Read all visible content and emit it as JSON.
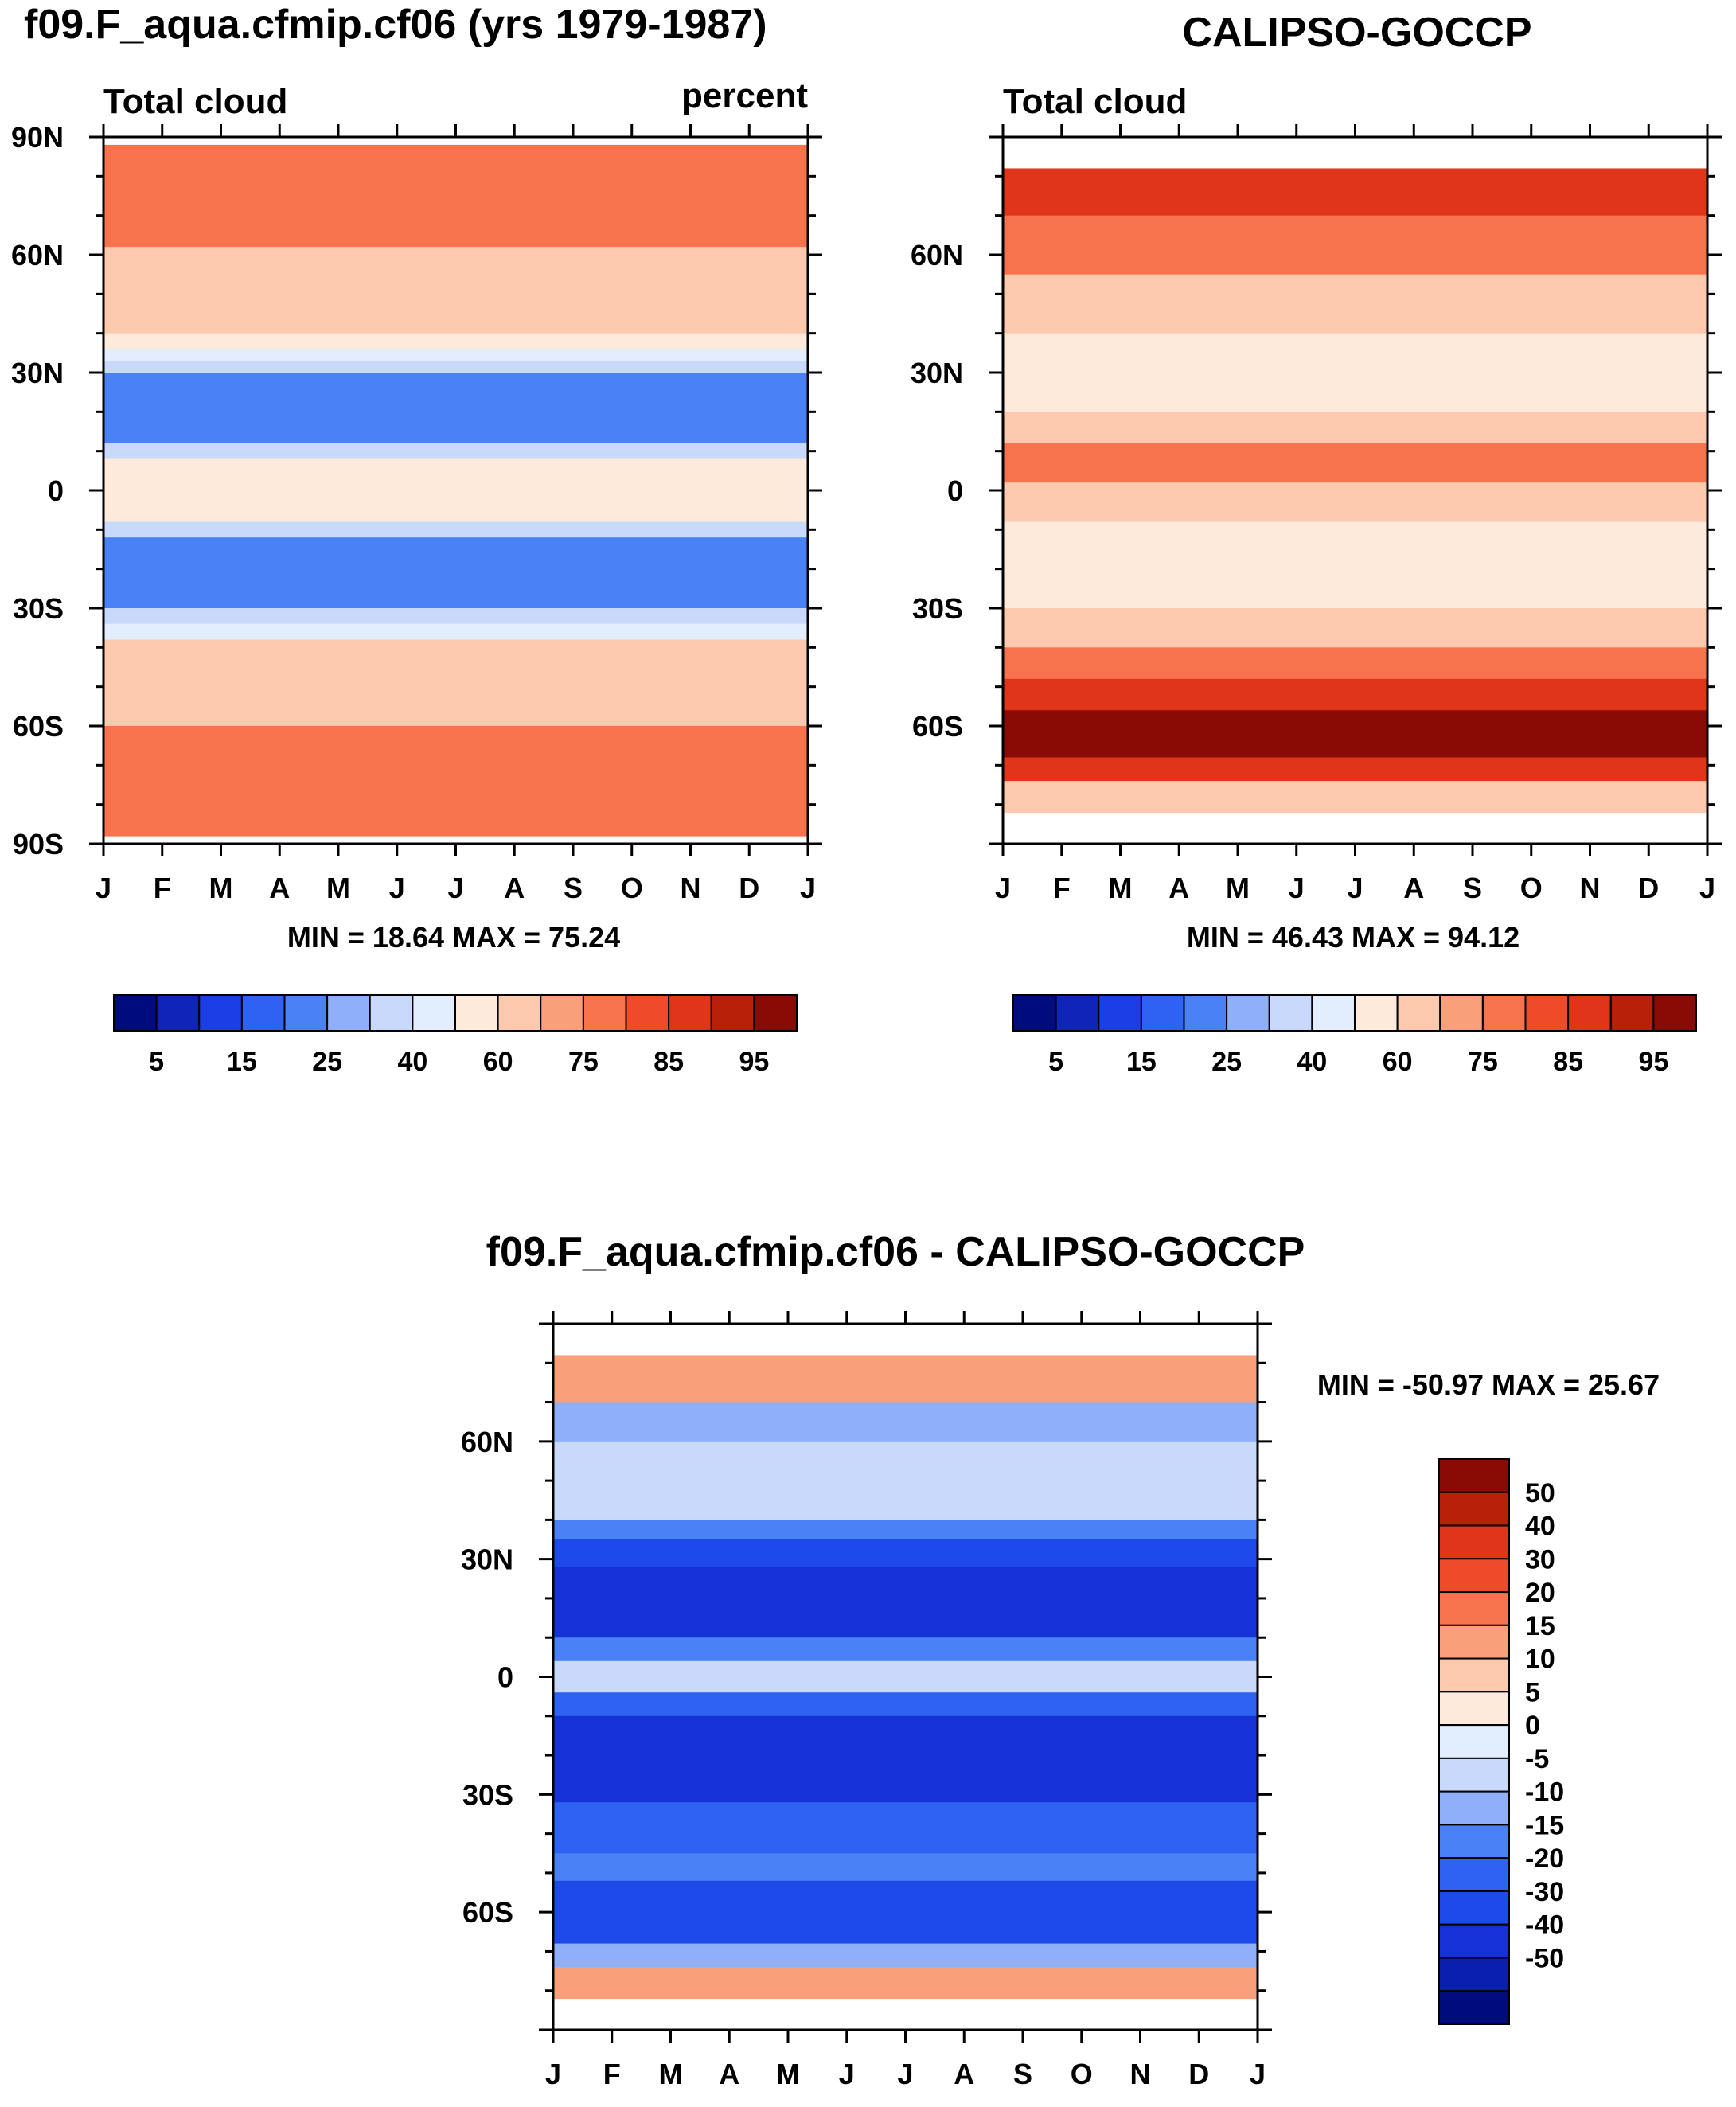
{
  "chart_data": [
    {
      "type": "heatmap",
      "title": "f09.F_aqua.cfmip.cf06 (yrs 1979-1987)",
      "left_label": "Total cloud",
      "right_label": "percent",
      "stats": "MIN =  18.64 MAX =  75.24",
      "x": [
        "J",
        "F",
        "M",
        "A",
        "M",
        "J",
        "J",
        "A",
        "S",
        "O",
        "N",
        "D",
        "J"
      ],
      "y_ticks": [
        "90N",
        "60N",
        "30N",
        "0",
        "30S",
        "60S",
        "90S"
      ],
      "lat_range": [
        -90,
        90
      ],
      "colorbar_labels": [
        "5",
        "15",
        "25",
        "40",
        "60",
        "75",
        "85",
        "95"
      ],
      "bands": [
        {
          "lat": [
            62,
            88
          ],
          "value": 75
        },
        {
          "lat": [
            40,
            62
          ],
          "value": 60
        },
        {
          "lat": [
            36,
            40
          ],
          "value": 50
        },
        {
          "lat": [
            33,
            36
          ],
          "value": 40
        },
        {
          "lat": [
            30,
            33
          ],
          "value": 30
        },
        {
          "lat": [
            12,
            30
          ],
          "value": 20
        },
        {
          "lat": [
            8,
            12
          ],
          "value": 35
        },
        {
          "lat": [
            -8,
            8
          ],
          "value": 50
        },
        {
          "lat": [
            -12,
            -8
          ],
          "value": 35
        },
        {
          "lat": [
            -30,
            -12
          ],
          "value": 20
        },
        {
          "lat": [
            -34,
            -30
          ],
          "value": 30
        },
        {
          "lat": [
            -38,
            -34
          ],
          "value": 45
        },
        {
          "lat": [
            -60,
            -38
          ],
          "value": 60
        },
        {
          "lat": [
            -88,
            -60
          ],
          "value": 75
        }
      ]
    },
    {
      "type": "heatmap",
      "title": "CALIPSO-GOCCP",
      "left_label": "Total cloud",
      "stats": "MIN =  46.43 MAX =  94.12",
      "x": [
        "J",
        "F",
        "M",
        "A",
        "M",
        "J",
        "J",
        "A",
        "S",
        "O",
        "N",
        "D",
        "J"
      ],
      "y_ticks": [
        "60N",
        "30N",
        "0",
        "30S",
        "60S"
      ],
      "lat_range": [
        -90,
        90
      ],
      "colorbar_labels": [
        "5",
        "15",
        "25",
        "40",
        "60",
        "75",
        "85",
        "95"
      ],
      "bands": [
        {
          "lat": [
            70,
            82
          ],
          "value": 85
        },
        {
          "lat": [
            55,
            70
          ],
          "value": 75
        },
        {
          "lat": [
            40,
            55
          ],
          "value": 60
        },
        {
          "lat": [
            20,
            40
          ],
          "value": 50
        },
        {
          "lat": [
            12,
            20
          ],
          "value": 60
        },
        {
          "lat": [
            2,
            12
          ],
          "value": 75
        },
        {
          "lat": [
            -8,
            2
          ],
          "value": 60
        },
        {
          "lat": [
            -30,
            -8
          ],
          "value": 50
        },
        {
          "lat": [
            -40,
            -30
          ],
          "value": 60
        },
        {
          "lat": [
            -48,
            -40
          ],
          "value": 75
        },
        {
          "lat": [
            -56,
            -48
          ],
          "value": 85
        },
        {
          "lat": [
            -68,
            -56
          ],
          "value": 95
        },
        {
          "lat": [
            -74,
            -68
          ],
          "value": 85
        },
        {
          "lat": [
            -82,
            -74
          ],
          "value": 60
        }
      ]
    },
    {
      "type": "heatmap",
      "title": "f09.F_aqua.cfmip.cf06 - CALIPSO-GOCCP",
      "stats": "MIN = -50.97 MAX =  25.67",
      "x": [
        "J",
        "F",
        "M",
        "A",
        "M",
        "J",
        "J",
        "A",
        "S",
        "O",
        "N",
        "D",
        "J"
      ],
      "y_ticks": [
        "60N",
        "30N",
        "0",
        "30S",
        "60S"
      ],
      "lat_range": [
        -90,
        90
      ],
      "colorbar_labels": [
        "50",
        "40",
        "30",
        "20",
        "15",
        "10",
        "5",
        "0",
        "-5",
        "-10",
        "-15",
        "-20",
        "-30",
        "-40",
        "-50"
      ],
      "bands": [
        {
          "lat": [
            70,
            82
          ],
          "value": 15
        },
        {
          "lat": [
            60,
            70
          ],
          "value": -8
        },
        {
          "lat": [
            40,
            60
          ],
          "value": -5
        },
        {
          "lat": [
            35,
            40
          ],
          "value": -15
        },
        {
          "lat": [
            28,
            35
          ],
          "value": -25
        },
        {
          "lat": [
            10,
            28
          ],
          "value": -35
        },
        {
          "lat": [
            4,
            10
          ],
          "value": -15
        },
        {
          "lat": [
            -4,
            4
          ],
          "value": -5
        },
        {
          "lat": [
            -10,
            -4
          ],
          "value": -20
        },
        {
          "lat": [
            -32,
            -10
          ],
          "value": -40
        },
        {
          "lat": [
            -45,
            -32
          ],
          "value": -20
        },
        {
          "lat": [
            -52,
            -45
          ],
          "value": -15
        },
        {
          "lat": [
            -68,
            -52
          ],
          "value": -30
        },
        {
          "lat": [
            -74,
            -68
          ],
          "value": -10
        },
        {
          "lat": [
            -82,
            -74
          ],
          "value": 15
        }
      ]
    }
  ],
  "colors": {
    "abs_scale": [
      "#000c7e",
      "#0f24b8",
      "#1c3ee6",
      "#2e62f2",
      "#4a82f5",
      "#8fb0f8",
      "#c8d9fb",
      "#e2eefd",
      "#fdeadb",
      "#fcc8ae",
      "#f9a07b",
      "#f6734e",
      "#ef4b2a",
      "#e03518",
      "#b92009",
      "#8a0a05"
    ],
    "diff_scale": [
      "#000c7e",
      "#0a1eb0",
      "#1432d6",
      "#1d4ae8",
      "#2e62f2",
      "#4a82f5",
      "#8fb0f8",
      "#c8d9fb",
      "#e2eefd",
      "#fdeadb",
      "#fcc8ae",
      "#f9a07b",
      "#f6734e",
      "#ef4b2a",
      "#e03518",
      "#b92009",
      "#8a0a05"
    ]
  }
}
